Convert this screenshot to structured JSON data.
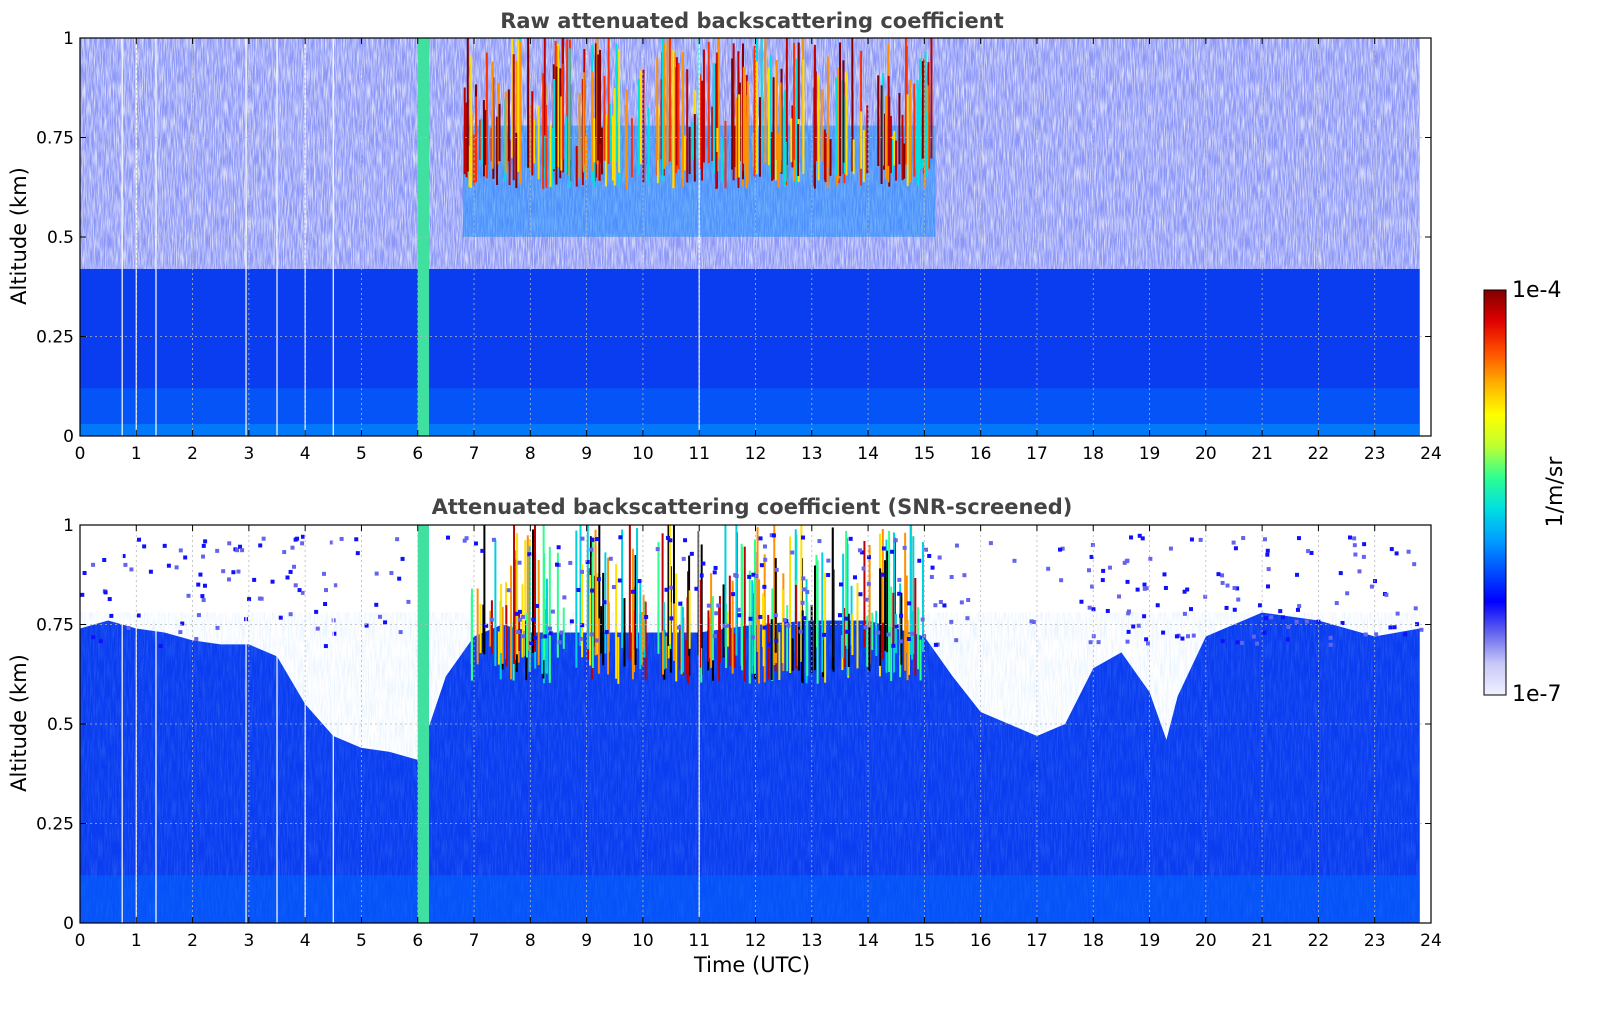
{
  "chart_data": [
    {
      "type": "heatmap",
      "title": "Raw attenuated backscattering coefficient",
      "xlabel": "",
      "ylabel": "Altitude (km)",
      "xlim": [
        0,
        24
      ],
      "ylim": [
        0,
        1
      ],
      "xticks": [
        "0",
        "1",
        "2",
        "3",
        "4",
        "5",
        "6",
        "7",
        "8",
        "9",
        "10",
        "11",
        "12",
        "13",
        "14",
        "15",
        "16",
        "17",
        "18",
        "19",
        "20",
        "21",
        "22",
        "23",
        "24"
      ],
      "yticks": [
        "0",
        "0.25",
        "0.5",
        "0.75",
        "1"
      ],
      "grid": true,
      "data_end_hour": 23.8,
      "features": [
        {
          "label": "fog/cloud column",
          "x": [
            6.0,
            6.2
          ],
          "y": [
            0,
            1
          ]
        },
        {
          "label": "low cloud layer",
          "x": [
            6.8,
            15.2
          ],
          "y": [
            0.6,
            1.0
          ]
        }
      ]
    },
    {
      "type": "heatmap",
      "title": "Attenuated backscattering coefficient (SNR-screened)",
      "xlabel": "Time (UTC)",
      "ylabel": "Altitude (km)",
      "xlim": [
        0,
        24
      ],
      "ylim": [
        0,
        1
      ],
      "xticks": [
        "0",
        "1",
        "2",
        "3",
        "4",
        "5",
        "6",
        "7",
        "8",
        "9",
        "10",
        "11",
        "12",
        "13",
        "14",
        "15",
        "16",
        "17",
        "18",
        "19",
        "20",
        "21",
        "22",
        "23",
        "24"
      ],
      "yticks": [
        "0",
        "0.25",
        "0.5",
        "0.75",
        "1"
      ],
      "grid": true,
      "data_end_hour": 23.8,
      "screened_top_profile": {
        "hour": [
          0,
          0.5,
          1,
          1.5,
          2,
          2.5,
          3,
          3.5,
          4,
          4.5,
          5,
          5.5,
          6,
          6.5,
          7,
          7.5,
          8,
          9,
          10,
          11,
          12,
          13,
          14,
          14.5,
          15,
          15.5,
          16,
          16.5,
          17,
          17.5,
          18,
          18.5,
          19,
          19.3,
          19.5,
          20,
          21,
          22,
          23,
          23.8
        ],
        "altitude_km": [
          0.74,
          0.76,
          0.74,
          0.73,
          0.71,
          0.7,
          0.7,
          0.67,
          0.55,
          0.47,
          0.44,
          0.43,
          0.41,
          0.62,
          0.72,
          0.75,
          0.73,
          0.73,
          0.73,
          0.73,
          0.75,
          0.76,
          0.76,
          0.74,
          0.72,
          0.62,
          0.53,
          0.5,
          0.47,
          0.5,
          0.64,
          0.68,
          0.58,
          0.46,
          0.57,
          0.72,
          0.78,
          0.76,
          0.72,
          0.74
        ]
      }
    }
  ],
  "colorbar": {
    "label": "1/m/sr",
    "max_label": "1e-4",
    "min_label": "1e-7",
    "scale": "log",
    "range": [
      1e-07,
      0.0001
    ],
    "colors": [
      "#f0f0ff",
      "#c8c8f8",
      "#6464ee",
      "#0000ff",
      "#0050ff",
      "#00a0ff",
      "#00e0e0",
      "#30ff90",
      "#c0ff30",
      "#ffff00",
      "#ffb000",
      "#ff5000",
      "#e00000",
      "#800000"
    ]
  }
}
